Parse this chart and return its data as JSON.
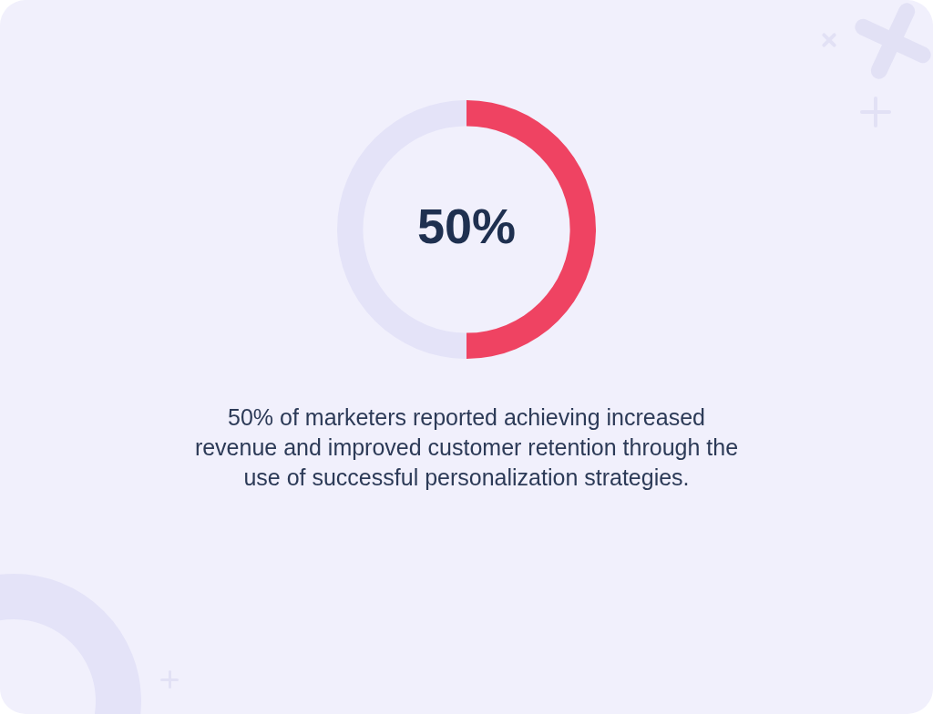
{
  "chart_data": {
    "type": "donut",
    "categories": [
      null,
      null
    ],
    "values": [
      50,
      50
    ],
    "colors": [
      "#ef4362",
      "#e4e3f8"
    ],
    "value_labels": [
      "50%",
      null
    ],
    "annotations": [
      "50% of marketers reported achieving increased revenue and improved customer retention through the use of successful personalization strategies."
    ]
  }
}
